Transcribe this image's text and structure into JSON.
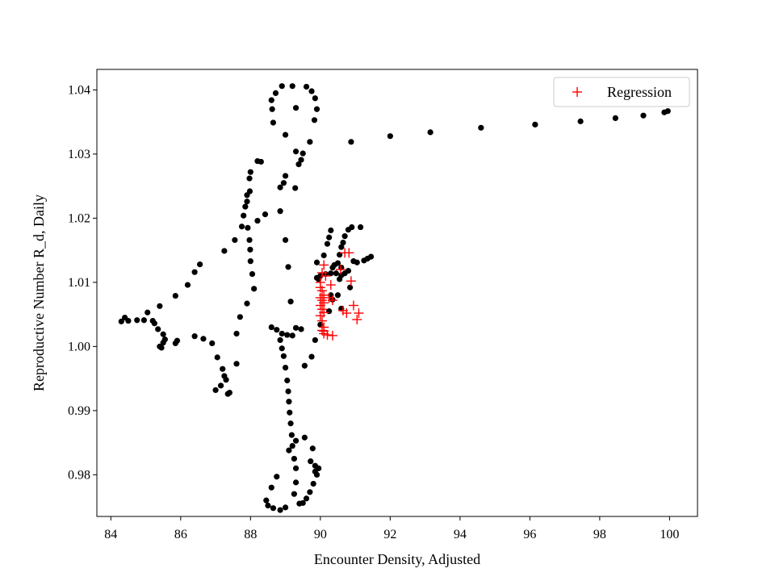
{
  "chart_data": {
    "type": "scatter",
    "xlabel": "Encounter Density, Adjusted",
    "ylabel": "Reproductive Number R_d, Daily",
    "xlim": [
      83.6,
      100.8
    ],
    "ylim": [
      0.9735,
      1.0432
    ],
    "xticks": [
      84,
      86,
      88,
      90,
      92,
      94,
      96,
      98,
      100
    ],
    "yticks": [
      0.98,
      0.99,
      1.0,
      1.01,
      1.02,
      1.03,
      1.04
    ],
    "ytick_labels": [
      "0.98",
      "0.99",
      "1.00",
      "1.01",
      "1.02",
      "1.03",
      "1.04"
    ],
    "grid": false,
    "legend_position": "top-right",
    "series": [
      {
        "marker": "dot",
        "color": "#000000",
        "points": [
          [
            99.95,
            1.0367
          ],
          [
            99.85,
            1.0365
          ],
          [
            99.25,
            1.036
          ],
          [
            98.45,
            1.0356
          ],
          [
            97.45,
            1.0351
          ],
          [
            96.15,
            1.0346
          ],
          [
            94.6,
            1.0341
          ],
          [
            93.15,
            1.0334
          ],
          [
            92.0,
            1.0328
          ],
          [
            90.88,
            1.0319
          ],
          [
            89.3,
            1.0304
          ],
          [
            89.0,
            1.033
          ],
          [
            89.3,
            1.0372
          ],
          [
            89.2,
            1.0406
          ],
          [
            88.9,
            1.0406
          ],
          [
            88.72,
            1.0395
          ],
          [
            88.6,
            1.0384
          ],
          [
            88.62,
            1.037
          ],
          [
            88.65,
            1.0349
          ],
          [
            89.6,
            1.0405
          ],
          [
            89.75,
            1.0398
          ],
          [
            89.85,
            1.0387
          ],
          [
            89.9,
            1.037
          ],
          [
            89.83,
            1.0353
          ],
          [
            89.7,
            1.0319
          ],
          [
            89.5,
            1.0301
          ],
          [
            89.38,
            1.0284
          ],
          [
            89.0,
            1.0266
          ],
          [
            88.95,
            1.0255
          ],
          [
            88.85,
            1.0248
          ],
          [
            89.28,
            1.0247
          ],
          [
            89.45,
            1.0291
          ],
          [
            88.3,
            1.0288
          ],
          [
            88.0,
            1.0272
          ],
          [
            87.97,
            1.0262
          ],
          [
            87.98,
            1.0242
          ],
          [
            87.9,
            1.0236
          ],
          [
            87.9,
            1.0226
          ],
          [
            87.85,
            1.0218
          ],
          [
            87.8,
            1.0204
          ],
          [
            87.75,
            1.0187
          ],
          [
            87.92,
            1.0185
          ],
          [
            87.97,
            1.0166
          ],
          [
            87.99,
            1.0151
          ],
          [
            88.0,
            1.0133
          ],
          [
            88.05,
            1.0113
          ],
          [
            88.1,
            1.009
          ],
          [
            87.9,
            1.0067
          ],
          [
            87.7,
            1.0046
          ],
          [
            87.6,
            1.002
          ],
          [
            88.2,
            1.0196
          ],
          [
            88.42,
            1.0206
          ],
          [
            88.85,
            1.0211
          ],
          [
            89.0,
            1.0166
          ],
          [
            89.08,
            1.0124
          ],
          [
            89.15,
            1.007
          ],
          [
            89.3,
            1.0029
          ],
          [
            88.6,
            1.003
          ],
          [
            88.75,
            1.0026
          ],
          [
            88.9,
            1.002
          ],
          [
            89.05,
            1.0018
          ],
          [
            89.2,
            1.0017
          ],
          [
            88.85,
            1.001
          ],
          [
            88.9,
            0.9997
          ],
          [
            88.95,
            0.9985
          ],
          [
            89.0,
            0.9967
          ],
          [
            89.05,
            0.9947
          ],
          [
            89.08,
            0.993
          ],
          [
            89.1,
            0.9914
          ],
          [
            89.12,
            0.9897
          ],
          [
            89.15,
            0.988
          ],
          [
            89.18,
            0.9862
          ],
          [
            89.2,
            0.9845
          ],
          [
            89.25,
            0.9825
          ],
          [
            89.3,
            0.981
          ],
          [
            89.3,
            0.9788
          ],
          [
            89.25,
            0.977
          ],
          [
            89.0,
            0.9749
          ],
          [
            88.85,
            0.9745
          ],
          [
            88.65,
            0.9748
          ],
          [
            88.5,
            0.9752
          ],
          [
            88.45,
            0.976
          ],
          [
            88.6,
            0.978
          ],
          [
            88.75,
            0.9797
          ],
          [
            89.1,
            0.9838
          ],
          [
            89.3,
            0.9853
          ],
          [
            89.55,
            0.9858
          ],
          [
            89.78,
            0.9841
          ],
          [
            89.72,
            0.9821
          ],
          [
            89.85,
            0.9814
          ],
          [
            89.95,
            0.981
          ],
          [
            89.85,
            0.9805
          ],
          [
            89.9,
            0.98
          ],
          [
            89.8,
            0.9786
          ],
          [
            89.7,
            0.9773
          ],
          [
            89.6,
            0.9763
          ],
          [
            89.5,
            0.9756
          ],
          [
            89.4,
            0.9755
          ],
          [
            89.55,
            0.997
          ],
          [
            89.75,
            0.9984
          ],
          [
            89.85,
            1.001
          ],
          [
            89.45,
            1.0027
          ],
          [
            88.2,
            1.0289
          ],
          [
            87.25,
            1.0149
          ],
          [
            87.55,
            1.0166
          ],
          [
            86.55,
            1.0128
          ],
          [
            86.4,
            1.0116
          ],
          [
            86.2,
            1.0096
          ],
          [
            85.85,
            1.0079
          ],
          [
            85.4,
            1.0063
          ],
          [
            85.05,
            1.0053
          ],
          [
            84.75,
            1.0041
          ],
          [
            84.5,
            1.004
          ],
          [
            84.4,
            1.0045
          ],
          [
            84.3,
            1.0039
          ],
          [
            84.95,
            1.0041
          ],
          [
            85.2,
            1.004
          ],
          [
            85.25,
            1.0036
          ],
          [
            85.35,
            1.0027
          ],
          [
            85.5,
            1.0019
          ],
          [
            85.55,
            1.0011
          ],
          [
            85.5,
            1.0006
          ],
          [
            85.4,
            1.0
          ],
          [
            85.45,
            0.9998
          ],
          [
            85.9,
            1.0009
          ],
          [
            85.85,
            1.0005
          ],
          [
            86.4,
            1.0016
          ],
          [
            86.65,
            1.0012
          ],
          [
            86.9,
            1.0005
          ],
          [
            87.05,
            0.9983
          ],
          [
            87.2,
            0.9965
          ],
          [
            87.25,
            0.9954
          ],
          [
            87.3,
            0.9948
          ],
          [
            87.15,
            0.9939
          ],
          [
            87.0,
            0.9932
          ],
          [
            87.4,
            0.9928
          ],
          [
            87.35,
            0.9926
          ],
          [
            87.6,
            0.9973
          ],
          [
            89.9,
            1.0131
          ],
          [
            90.1,
            1.0142
          ],
          [
            90.2,
            1.016
          ],
          [
            90.25,
            1.017
          ],
          [
            90.3,
            1.0181
          ],
          [
            90.4,
            1.0127
          ],
          [
            90.35,
            1.0123
          ],
          [
            90.5,
            1.013
          ],
          [
            90.6,
            1.0123
          ],
          [
            90.45,
            1.0114
          ],
          [
            90.3,
            1.0114
          ],
          [
            90.15,
            1.0113
          ],
          [
            90.0,
            1.011
          ],
          [
            89.95,
            1.0105
          ],
          [
            89.9,
            1.0107
          ],
          [
            90.55,
            1.0143
          ],
          [
            90.6,
            1.0155
          ],
          [
            90.65,
            1.0162
          ],
          [
            90.7,
            1.0172
          ],
          [
            90.8,
            1.0182
          ],
          [
            90.9,
            1.0186
          ],
          [
            91.15,
            1.0186
          ],
          [
            90.95,
            1.0133
          ],
          [
            91.05,
            1.0131
          ],
          [
            91.25,
            1.0134
          ],
          [
            91.35,
            1.0137
          ],
          [
            91.45,
            1.014
          ],
          [
            90.8,
            1.0118
          ],
          [
            90.7,
            1.0114
          ],
          [
            90.6,
            1.0111
          ],
          [
            90.85,
            1.0092
          ],
          [
            90.5,
            1.008
          ],
          [
            90.35,
            1.0073
          ],
          [
            90.25,
            1.0055
          ],
          [
            90.0,
            1.0034
          ],
          [
            90.6,
            1.0059
          ],
          [
            90.55,
            1.0105
          ],
          [
            90.3,
            1.008
          ]
        ]
      },
      {
        "name": "Regression",
        "marker": "plus",
        "color": "#ff0000",
        "points": [
          [
            90.1,
            1.0127
          ],
          [
            90.05,
            1.0115
          ],
          [
            90.0,
            1.01
          ],
          [
            90.0,
            1.0092
          ],
          [
            90.05,
            1.0087
          ],
          [
            90.1,
            1.008
          ],
          [
            90.0,
            1.0076
          ],
          [
            90.05,
            1.0072
          ],
          [
            90.1,
            1.0068
          ],
          [
            90.0,
            1.0064
          ],
          [
            90.05,
            1.0058
          ],
          [
            90.1,
            1.0053
          ],
          [
            90.0,
            1.0048
          ],
          [
            90.05,
            1.004
          ],
          [
            90.1,
            1.003
          ],
          [
            90.05,
            1.0025
          ],
          [
            90.1,
            1.002
          ],
          [
            90.2,
            1.0018
          ],
          [
            90.35,
            1.0017
          ],
          [
            90.1,
            1.0024
          ],
          [
            90.3,
            1.0096
          ],
          [
            90.25,
            1.0076
          ],
          [
            90.35,
            1.0072
          ],
          [
            90.7,
            1.0146
          ],
          [
            90.82,
            1.0146
          ],
          [
            90.58,
            1.012
          ],
          [
            90.88,
            1.0102
          ],
          [
            90.65,
            1.0056
          ],
          [
            90.75,
            1.0052
          ],
          [
            90.95,
            1.0064
          ],
          [
            91.1,
            1.0052
          ],
          [
            91.05,
            1.0042
          ],
          [
            90.15,
            1.011
          ]
        ]
      }
    ]
  }
}
